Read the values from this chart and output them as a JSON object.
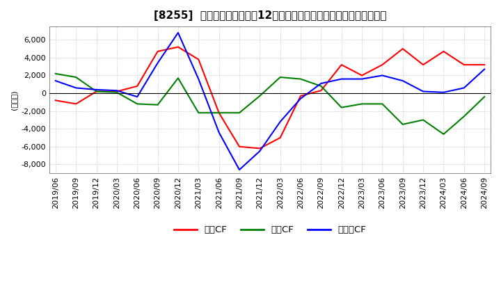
{
  "title": "[8255]  キャッシュフローの12か月移動合計の対前年同期増減額の推移",
  "ylabel": "(百万円)",
  "ylim": [
    -9000,
    7500
  ],
  "yticks": [
    -8000,
    -6000,
    -4000,
    -2000,
    0,
    2000,
    4000,
    6000
  ],
  "legend_labels": [
    "営業CF",
    "投資CF",
    "フリーCF"
  ],
  "line_colors": [
    "#ff0000",
    "#008000",
    "#0000ff"
  ],
  "dates": [
    "2019/06",
    "2019/09",
    "2019/12",
    "2020/03",
    "2020/06",
    "2020/09",
    "2020/12",
    "2021/03",
    "2021/06",
    "2021/09",
    "2021/12",
    "2022/03",
    "2022/06",
    "2022/09",
    "2022/12",
    "2023/03",
    "2023/06",
    "2023/09",
    "2023/12",
    "2024/03",
    "2024/06",
    "2024/09"
  ],
  "operating_cf": [
    -800,
    -1200,
    200,
    200,
    800,
    4700,
    5200,
    3800,
    -2200,
    -6000,
    -6200,
    -5000,
    -300,
    300,
    3200,
    2000,
    3200,
    5000,
    3200,
    4700,
    3200,
    3200
  ],
  "investing_cf": [
    2200,
    1800,
    200,
    100,
    -1200,
    -1300,
    1700,
    -2200,
    -2200,
    -2200,
    -300,
    1800,
    1600,
    800,
    -1600,
    -1200,
    -1200,
    -3500,
    -3000,
    -4600,
    -2600,
    -400
  ],
  "free_cf": [
    1400,
    600,
    400,
    300,
    -400,
    3400,
    6800,
    1600,
    -4400,
    -8600,
    -6500,
    -3200,
    -600,
    1100,
    1600,
    1600,
    2000,
    1400,
    200,
    100,
    600,
    2700
  ],
  "background_color": "#ffffff",
  "grid_color": "#aaaaaa",
  "title_fontsize": 11,
  "axis_fontsize": 8
}
